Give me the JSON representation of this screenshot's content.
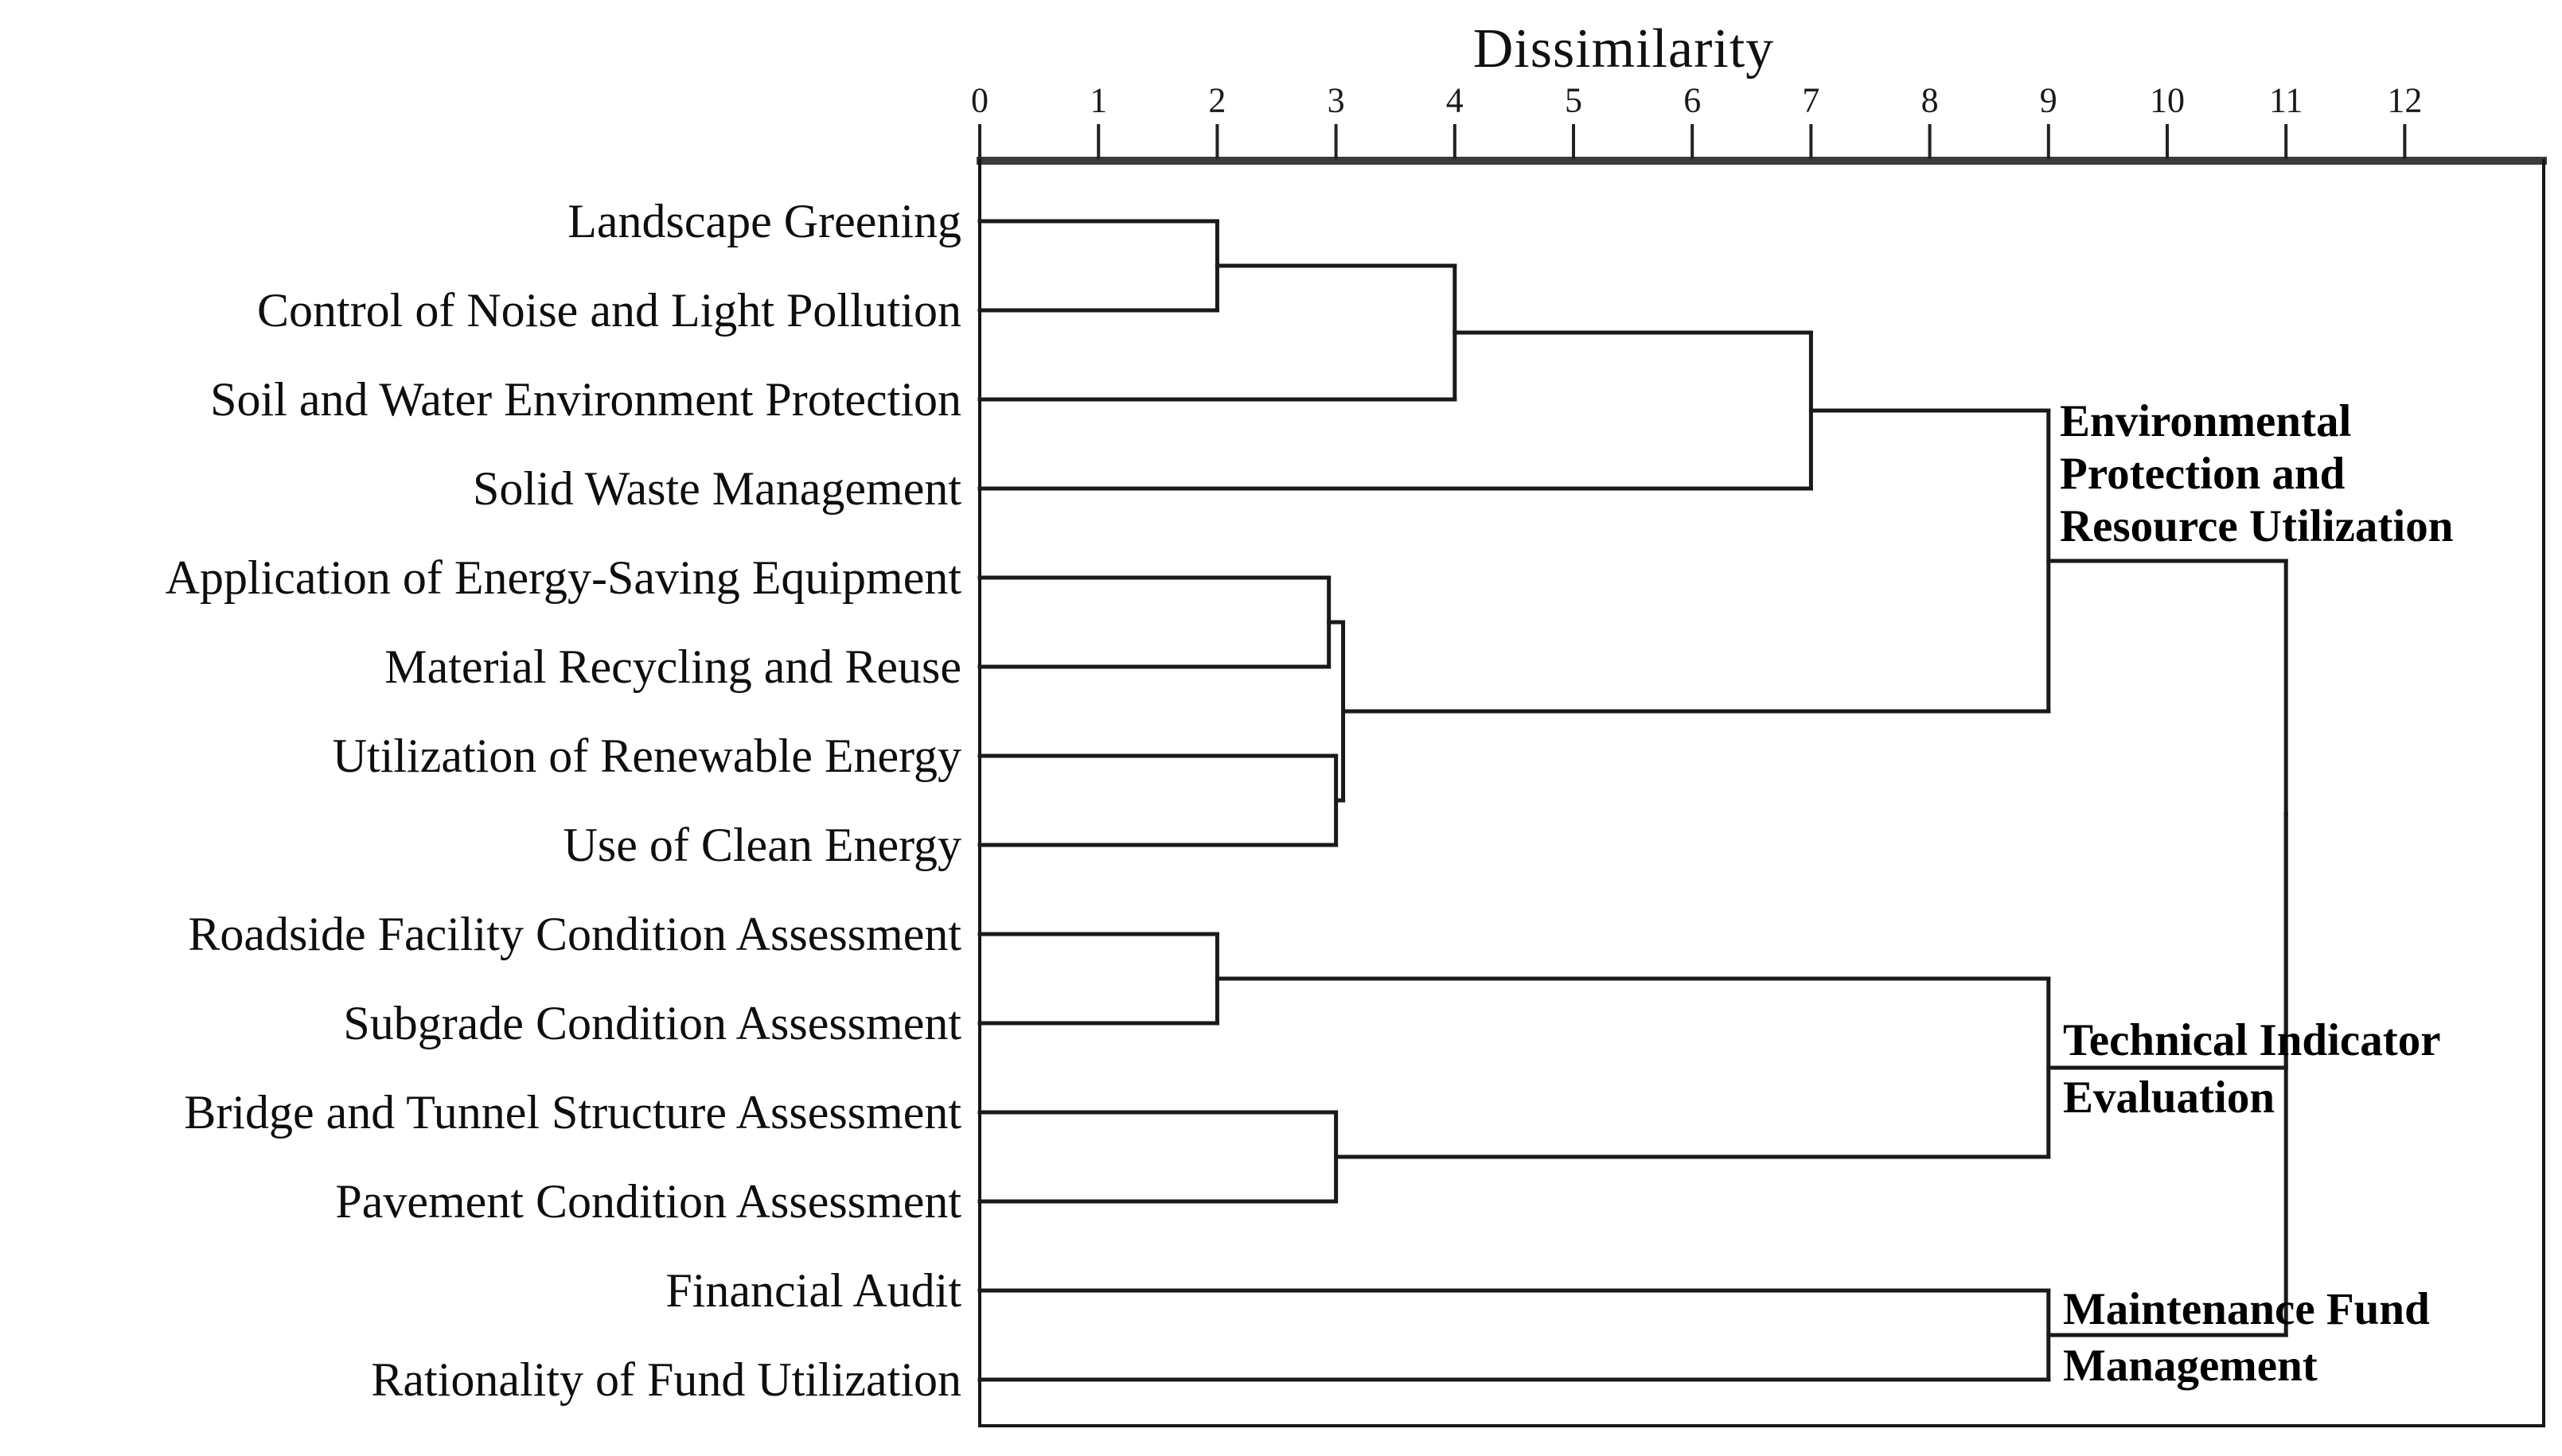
{
  "chart_data": {
    "type": "dendrogram",
    "title": "Dissimilarity",
    "orientation": "horizontal, leaves on left, distance axis on top",
    "grid": "off",
    "background_color": "#ffffff",
    "line_color": "#1a1a1a",
    "axis_bar_color": "#3b3b3b",
    "axis": {
      "label": "Dissimilarity",
      "position": "top",
      "min": 0,
      "max": 12,
      "ticks": [
        0,
        1,
        2,
        3,
        4,
        5,
        6,
        7,
        8,
        9,
        10,
        11,
        12
      ]
    },
    "leaves": [
      "Landscape Greening",
      "Control of Noise and Light Pollution",
      "Soil and Water Environment Protection",
      "Solid Waste Management",
      "Application of Energy-Saving Equipment",
      "Material Recycling and Reuse",
      "Utilization of Renewable Energy",
      "Use of Clean Energy",
      "Roadside Facility Condition Assessment",
      "Subgrade Condition Assessment",
      "Bridge and Tunnel Structure Assessment",
      "Pavement Condition Assessment",
      "Financial Audit",
      "Rationality of Fund Utilization"
    ],
    "merges": [
      {
        "a": "leaf-0",
        "b": "leaf-1",
        "distance": 2.0
      },
      {
        "a": "merge-0",
        "b": "leaf-2",
        "distance": 4.0
      },
      {
        "a": "merge-1",
        "b": "leaf-3",
        "distance": 7.0
      },
      {
        "a": "leaf-4",
        "b": "leaf-5",
        "distance": 2.94
      },
      {
        "a": "leaf-6",
        "b": "leaf-7",
        "distance": 3.0
      },
      {
        "a": "merge-3",
        "b": "merge-4",
        "distance": 3.06
      },
      {
        "a": "merge-2",
        "b": "merge-5",
        "distance": 9.0,
        "cluster": "Environmental Protection and Resource Utilization"
      },
      {
        "a": "leaf-8",
        "b": "leaf-9",
        "distance": 2.0
      },
      {
        "a": "leaf-10",
        "b": "leaf-11",
        "distance": 3.0
      },
      {
        "a": "merge-7",
        "b": "merge-8",
        "distance": 9.0,
        "cluster": "Technical Indicator Evaluation"
      },
      {
        "a": "leaf-12",
        "b": "leaf-13",
        "distance": 9.0,
        "cluster": "Maintenance Fund Management"
      },
      {
        "a": "merge-6",
        "b": "merge-9",
        "distance": 11.0
      },
      {
        "a": "merge-11",
        "b": "merge-10",
        "distance": 11.0
      }
    ],
    "clusters": [
      {
        "name": "Environmental Protection and Resource Utilization",
        "join_distance": 9,
        "members": [
          "Landscape Greening",
          "Control of Noise and Light Pollution",
          "Soil and Water Environment Protection",
          "Solid Waste Management",
          "Application of Energy-Saving Equipment",
          "Material Recycling and Reuse",
          "Utilization of Renewable Energy",
          "Use of Clean Energy"
        ],
        "label_lines": [
          "Environmental",
          "Protection and",
          "Resource Utilization"
        ]
      },
      {
        "name": "Technical Indicator Evaluation",
        "join_distance": 9,
        "members": [
          "Roadside Facility Condition Assessment",
          "Subgrade Condition Assessment",
          "Bridge and Tunnel Structure Assessment",
          "Pavement Condition Assessment"
        ],
        "label_lines": [
          "Technical Indicator",
          "Evaluation"
        ]
      },
      {
        "name": "Maintenance Fund Management",
        "join_distance": 9,
        "members": [
          "Financial Audit",
          "Rationality of Fund Utilization"
        ],
        "label_lines": [
          "Maintenance Fund",
          "Management"
        ]
      }
    ],
    "root_join_distance": 11
  }
}
